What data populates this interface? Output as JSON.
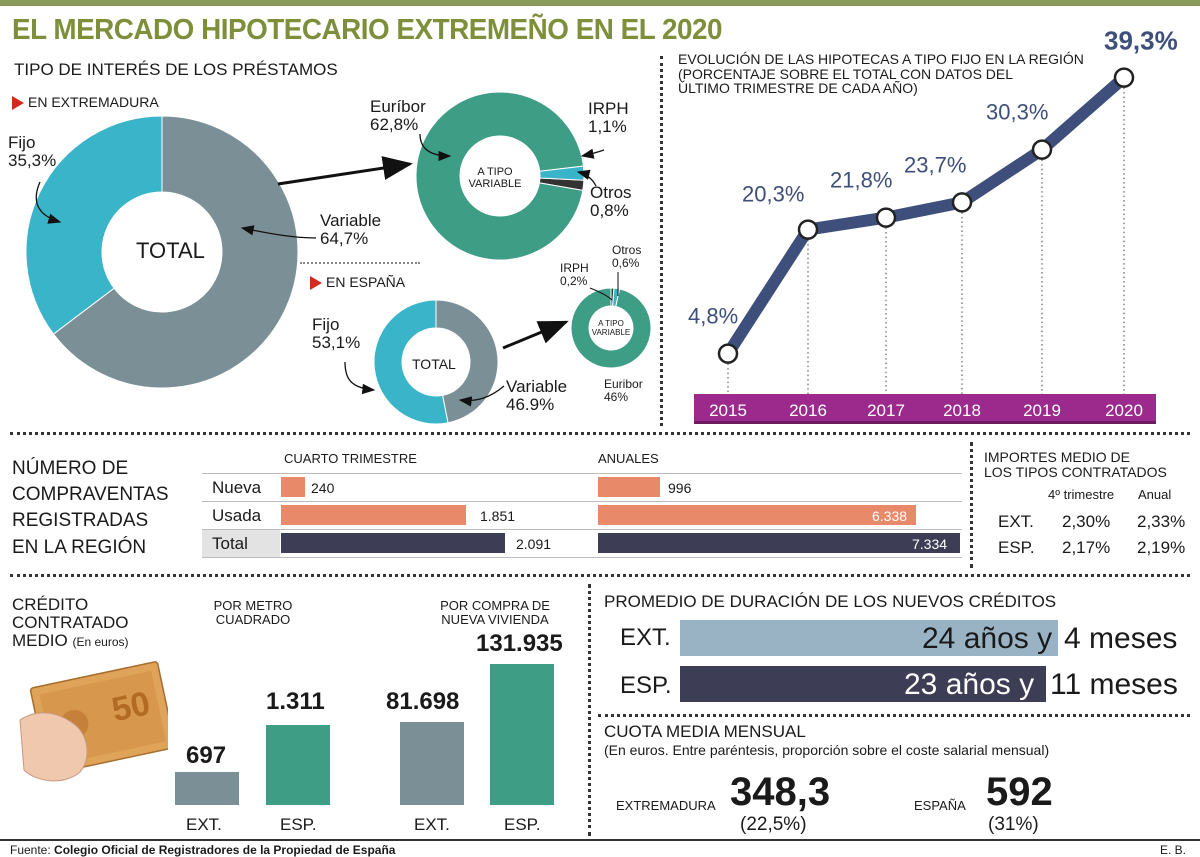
{
  "title": "EL MERCADO HIPOTECARIO EXTREMEÑO EN EL 2020",
  "rates": {
    "heading": "TIPO DE INTERÉS DE LOS PRÉSTAMOS",
    "extremadura_label": "EN EXTREMADURA",
    "espana_label": "EN ESPAÑA",
    "total_label": "TOTAL",
    "variable_center": "A TIPO VARIABLE",
    "ext": {
      "fijo": {
        "label": "Fijo",
        "value": "35,3%",
        "pct": 35.3
      },
      "variable": {
        "label": "Variable",
        "value": "64,7%",
        "pct": 64.7
      },
      "euribor": {
        "label": "Euríbor",
        "value": "62,8%",
        "pct": 62.8
      },
      "irph": {
        "label": "IRPH",
        "value": "1,1%",
        "pct": 1.1
      },
      "otros": {
        "label": "Otros",
        "value": "0,8%",
        "pct": 0.8
      }
    },
    "esp": {
      "fijo": {
        "label": "Fijo",
        "value": "53,1%",
        "pct": 53.1
      },
      "variable": {
        "label": "Variable",
        "value": "46.9%",
        "pct": 46.9
      },
      "euribor": {
        "label": "Euribor",
        "value": "46%",
        "pct": 46
      },
      "irph": {
        "label": "IRPH",
        "value": "0,2%",
        "pct": 0.2
      },
      "otros": {
        "label": "Otros",
        "value": "0,6%",
        "pct": 0.6
      }
    }
  },
  "evolution": {
    "heading1": "EVOLUCIÓN DE LAS HIPOTECAS A TIPO FIJO EN LA REGIÓN",
    "heading2": "(PORCENTAJE SOBRE EL TOTAL CON DATOS DEL",
    "heading3": "ÚLTIMO TRIMESTRE DE CADA AÑO)"
  },
  "sales": {
    "title_lines": [
      "NÚMERO DE",
      "COMPRAVENTAS",
      "REGISTRADAS",
      "EN LA REGIÓN"
    ],
    "col_q4": "CUARTO TRIMESTRE",
    "col_annual": "ANUALES",
    "rows": [
      {
        "label": "Nueva",
        "q4": "240",
        "annual": "996"
      },
      {
        "label": "Usada",
        "q4": "1.851",
        "annual": "6.338"
      },
      {
        "label": "Total",
        "q4": "2.091",
        "annual": "7.334"
      }
    ]
  },
  "importes": {
    "heading1": "IMPORTES MEDIO DE",
    "heading2": "LOS TIPOS CONTRATADOS",
    "col1": "4º trimestre",
    "col2": "Anual",
    "rows": [
      {
        "label": "EXT.",
        "q4": "2,30%",
        "annual": "2,33%"
      },
      {
        "label": "ESP.",
        "q4": "2,17%",
        "annual": "2,19%"
      }
    ]
  },
  "credit": {
    "heading_lines": [
      "CRÉDITO",
      "CONTRATADO",
      "MEDIO"
    ],
    "unit": "(En euros)",
    "m2_heading": [
      "POR METRO",
      "CUADRADO"
    ],
    "vivienda_heading": [
      "POR COMPRA DE",
      "NUEVA VIVIENDA"
    ],
    "ext_label": "EXT.",
    "esp_label": "ESP.",
    "m2_ext": "697",
    "m2_esp": "1.311",
    "viv_ext": "81.698",
    "viv_esp": "131.935"
  },
  "duration": {
    "heading": "PROMEDIO DE DURACIÓN DE LOS NUEVOS CRÉDITOS",
    "ext_label": "EXT.",
    "esp_label": "ESP.",
    "ext_years": "24 años y",
    "ext_months": "4 meses",
    "esp_years": "23 años y",
    "esp_months": "11 meses"
  },
  "cuota": {
    "heading": "CUOTA MEDIA MENSUAL",
    "subheading": "(En euros. Entre paréntesis, proporción sobre el coste salarial mensual)",
    "ext_label": "EXTREMADURA",
    "ext_value": "348,3",
    "ext_pct": "(22,5%)",
    "esp_label": "ESPAÑA",
    "esp_value": "592",
    "esp_pct": "(31%)"
  },
  "footer": {
    "prefix": "Fuente: ",
    "source": "Colegio Oficial de Registradores de la Propiedad de España",
    "credit": "E. B."
  },
  "colors": {
    "teal": "#3ab4c8",
    "slate": "#7b8f96",
    "green": "#3d9e85",
    "navy": "#3d4f7a",
    "purple": "#9b2a8c",
    "orange": "#e8896a",
    "dark": "#3d3d55",
    "ltblue": "#9ab3c4"
  },
  "chart_data": {
    "type": "line",
    "x": [
      "2015",
      "2016",
      "2017",
      "2018",
      "2019",
      "2020"
    ],
    "series": [
      {
        "values": [
          4.8,
          20.3,
          21.8,
          23.7,
          30.3,
          39.3
        ]
      }
    ],
    "labels": [
      "4,8%",
      "20,3%",
      "21,8%",
      "23,7%",
      "30,3%",
      "39,3%"
    ],
    "ylim": [
      0,
      42
    ]
  }
}
